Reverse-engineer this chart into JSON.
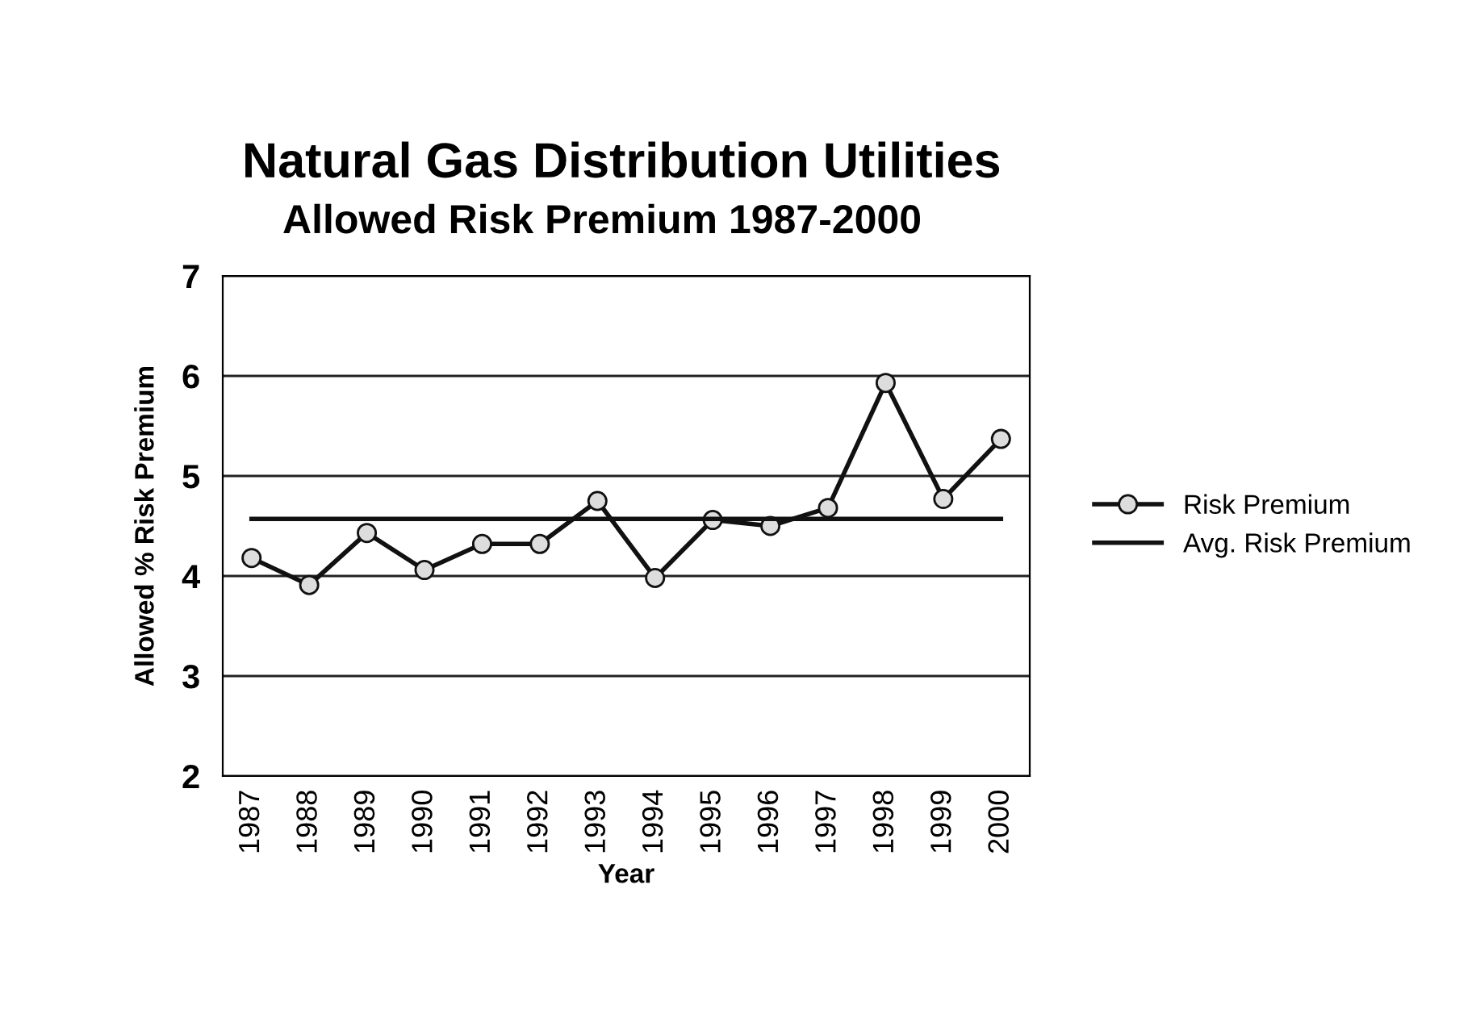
{
  "chart_data": {
    "type": "line",
    "title": "Natural Gas Distribution Utilities",
    "subtitle": "Allowed Risk Premium 1987-2000",
    "xlabel": "Year",
    "ylabel": "Allowed % Risk Premium",
    "categories": [
      "1987",
      "1988",
      "1989",
      "1990",
      "1991",
      "1992",
      "1993",
      "1994",
      "1995",
      "1996",
      "1997",
      "1998",
      "1999",
      "2000"
    ],
    "series": [
      {
        "name": "Risk Premium",
        "color": "#111111",
        "marker": "circle",
        "values": [
          4.18,
          3.91,
          4.43,
          4.06,
          4.32,
          4.32,
          4.75,
          3.98,
          4.56,
          4.5,
          4.68,
          5.93,
          4.77,
          5.37
        ]
      },
      {
        "name": "Avg. Risk Premium",
        "color": "#111111",
        "marker": "none",
        "values": [
          4.57,
          4.57,
          4.57,
          4.57,
          4.57,
          4.57,
          4.57,
          4.57,
          4.57,
          4.57,
          4.57,
          4.57,
          4.57,
          4.57
        ]
      }
    ],
    "ylim": [
      2,
      7
    ],
    "yticks": [
      2,
      3,
      4,
      5,
      6,
      7
    ],
    "grid": "y",
    "legend": "right",
    "line_style": "solid"
  }
}
